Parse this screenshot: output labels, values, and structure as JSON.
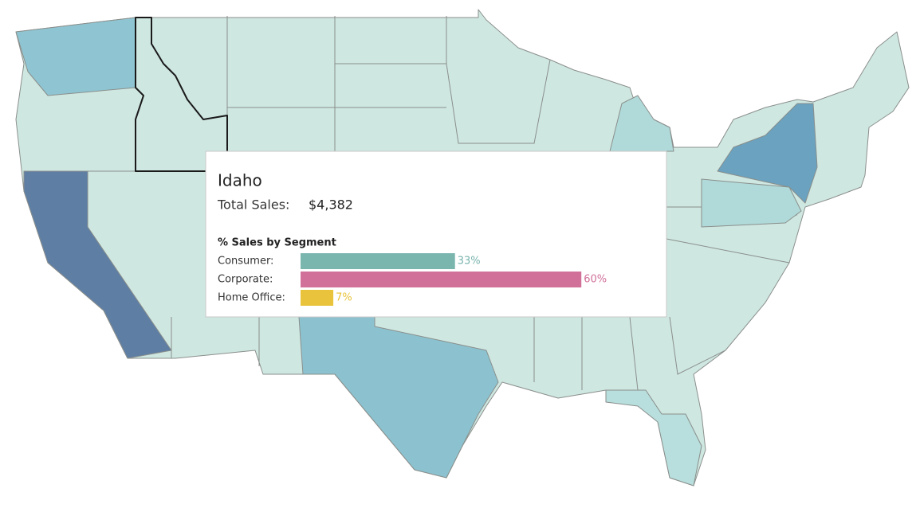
{
  "tooltip": {
    "state": "Idaho",
    "total_sales_label": "Total Sales:",
    "total_sales": "$4,382"
  },
  "chart_data": {
    "type": "bar",
    "title": "% Sales by Segment",
    "categories": [
      "Consumer:",
      "Corporate:",
      "Home Office:"
    ],
    "values": [
      33,
      60,
      7
    ],
    "value_labels": [
      "33%",
      "60%",
      "7%"
    ],
    "colors": [
      "#7ab5ae",
      "#d1719a",
      "#e8c33b"
    ]
  }
}
